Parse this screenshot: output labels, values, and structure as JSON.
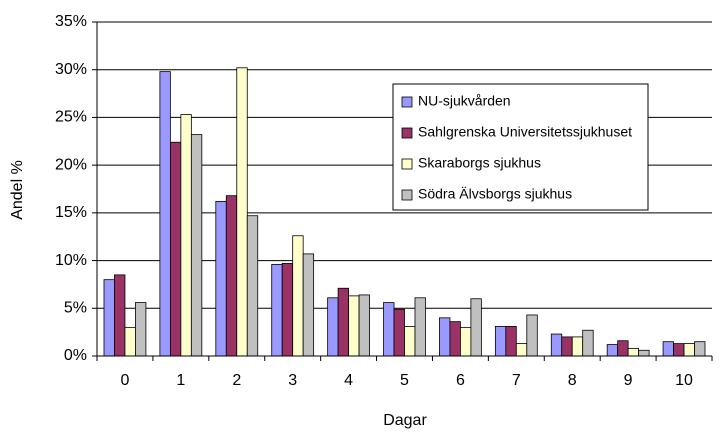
{
  "chart_data": {
    "type": "bar",
    "x_label": "Dagar",
    "y_label": "Andel %",
    "categories": [
      "0",
      "1",
      "2",
      "3",
      "4",
      "5",
      "6",
      "7",
      "8",
      "9",
      "10"
    ],
    "series": [
      {
        "name": "NU-sjukvården",
        "color": "#9999ff",
        "values": [
          8.0,
          29.8,
          16.2,
          9.6,
          6.1,
          5.6,
          4.0,
          3.1,
          2.3,
          1.2,
          1.5
        ]
      },
      {
        "name": "Sahlgrenska Universitetssjukhuset",
        "color": "#993366",
        "values": [
          8.5,
          22.4,
          16.8,
          9.7,
          7.1,
          4.9,
          3.6,
          3.1,
          2.0,
          1.6,
          1.3
        ]
      },
      {
        "name": "Skaraborgs sjukhus",
        "color": "#ffffcc",
        "values": [
          3.0,
          25.3,
          30.2,
          12.6,
          6.3,
          3.1,
          3.0,
          1.3,
          2.0,
          0.8,
          1.3
        ]
      },
      {
        "name": "Södra Älvsborgs sjukhus",
        "color": "#c0c0c0",
        "values": [
          5.6,
          23.2,
          14.7,
          10.7,
          6.4,
          6.1,
          6.0,
          4.3,
          2.7,
          0.6,
          1.5
        ]
      }
    ],
    "ylim": [
      0,
      35
    ],
    "yticks": [
      {
        "value": 0,
        "label": "0%"
      },
      {
        "value": 5,
        "label": "5%"
      },
      {
        "value": 10,
        "label": "10%"
      },
      {
        "value": 15,
        "label": "15%"
      },
      {
        "value": 20,
        "label": "20%"
      },
      {
        "value": 25,
        "label": "25%"
      },
      {
        "value": 30,
        "label": "30%"
      },
      {
        "value": 35,
        "label": "35%"
      }
    ],
    "grid": true
  }
}
